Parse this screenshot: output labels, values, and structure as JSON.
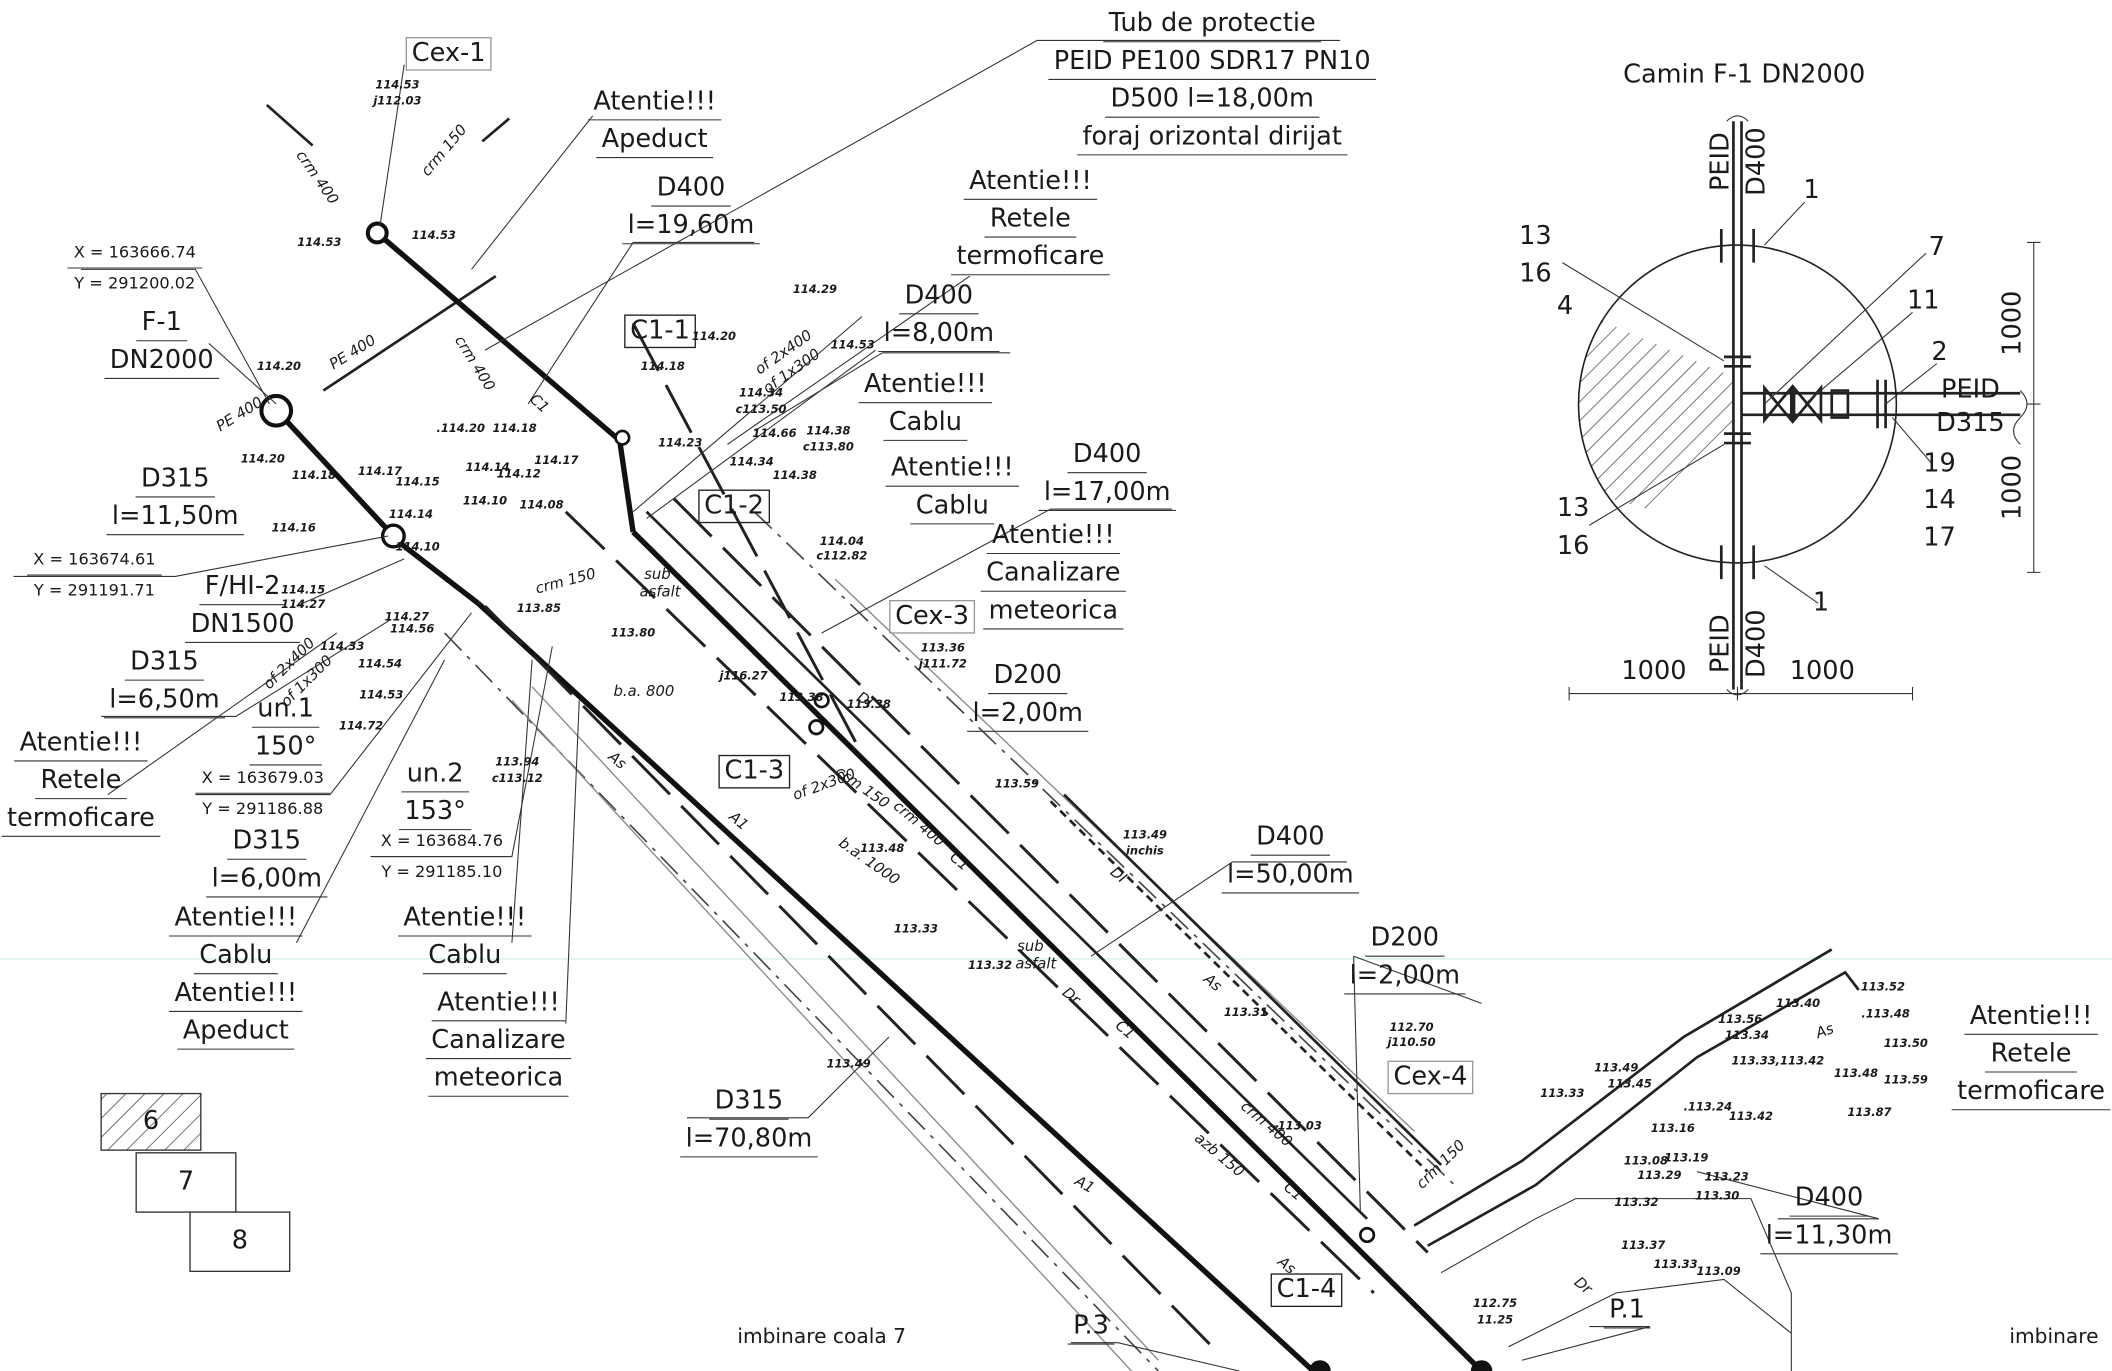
{
  "drawing": {
    "callouts": [
      [
        "Tub de protectie",
        "PEID PE100 SDR17 PN10",
        "D500 l=18,00m",
        "foraj orizontal dirijat"
      ],
      [
        "Atentie!!!",
        "Apeduct"
      ],
      [
        "D400",
        "l=19,60m"
      ],
      [
        "Atentie!!!",
        "Retele",
        "termoficare"
      ],
      [
        "F-1",
        "DN2000"
      ],
      [
        "D400",
        "l=8,00m"
      ],
      [
        "Atentie!!!",
        "Cablu"
      ],
      [
        "D400",
        "l=17,00m"
      ],
      [
        "Atentie!!!",
        "Cablu"
      ],
      [
        "Atentie!!!",
        "Canalizare",
        "meteorica"
      ],
      [
        "D315",
        "l=11,50m"
      ],
      [
        "F/HI-2",
        "DN1500"
      ],
      [
        "D200",
        "l=2,00m"
      ],
      [
        "D315",
        "l=6,50m"
      ],
      [
        "un.1",
        "150°"
      ],
      [
        "Atentie!!!",
        "Retele",
        "termoficare"
      ],
      [
        "D315",
        "l=6,00m"
      ],
      [
        "un.2",
        "153°"
      ],
      [
        "Atentie!!!",
        "Cablu",
        "Atentie!!!",
        "Apeduct"
      ],
      [
        "Atentie!!!",
        "Cablu"
      ],
      [
        "Atentie!!!",
        "Canalizare",
        "meteorica"
      ],
      [
        "D400",
        "l=50,00m"
      ],
      [
        "D200",
        "l=2,00m"
      ],
      [
        "D315",
        "l=70,80m"
      ],
      [
        "Atentie!!!",
        "Retele",
        "termoficare"
      ],
      [
        "D400",
        "l=11,30m"
      ],
      [
        "P.1"
      ],
      [
        "P.3"
      ]
    ],
    "coordinates": [
      [
        "X = 163666.74",
        "Y = 291200.02"
      ],
      [
        "X = 163674.61",
        "Y = 291191.71"
      ],
      [
        "X = 163679.03",
        "Y = 291186.88"
      ],
      [
        "X = 163684.76",
        "Y = 291185.10"
      ]
    ],
    "boxed_labels": [
      "Cex-1",
      "C1-1",
      "C1-2",
      "Cex-3",
      "C1-3",
      "Cex-4",
      "C1-4"
    ],
    "elevations": [
      "114.53",
      "j112.03",
      "114.53",
      "114.53",
      "114.20",
      "114.20",
      "114.18",
      "114.16",
      "114.17",
      "114.15",
      ".114.20",
      "114.18",
      "114.14",
      "114.12",
      "114.17",
      "114.10",
      "114.08",
      "114.14",
      "114.10",
      "114.15",
      "114.27",
      "114.27",
      "114.56",
      "114.33",
      "114.54",
      "114.53",
      "114.72",
      "113.85",
      "113.94",
      "c113.12",
      "114.29",
      "114.20",
      "114.18",
      "114.53",
      "114.34",
      "c113.50",
      "114.66",
      "114.38",
      "c113.80",
      "114.23",
      "114.34",
      "114.38",
      "114.04",
      "c112.82",
      "113.80",
      "113.36",
      "j111.72",
      "j116.27",
      "113.38",
      "113.38",
      "113.59",
      "113.49",
      "inchis",
      "113.48",
      "113.33",
      "113.32",
      "113.49",
      "113.31",
      "113.03",
      "112.70",
      "j110.50",
      "113.52",
      ".113.48",
      "113.50",
      "113.59",
      "113.40",
      "113.56",
      "113.34",
      "113.33,113.42",
      "113.48",
      "113.87",
      "113.49",
      "113.45",
      "113.33",
      "113.16",
      ".113.24",
      "113.42",
      "113.08",
      "113.19",
      "113.29",
      "113.23",
      "113.30",
      "113.32",
      "113.37",
      "113.33",
      "113.09",
      "112.75",
      "11.25"
    ],
    "pipe_labels": [
      "C1",
      "crm 400",
      "crm 150",
      "crm 400",
      "PE 400",
      "PE 400",
      "crm 150",
      "b.a. 800",
      "of 2x300",
      "b.a. 1000",
      "crm 150",
      "crm 400",
      "C1",
      "As",
      "A1",
      "A1",
      "C1",
      "As",
      "azb 150",
      "C1",
      "crm 400",
      "As",
      "Dr",
      "As",
      "of 2x400",
      "of 1x300",
      "of 2x400",
      "of 1x300",
      "DI",
      "sub",
      "asfalt",
      "sub",
      "asfalt",
      "DI",
      "Dr",
      "crm 150"
    ],
    "sheet_notes": [
      "imbinare coala 7",
      "imbinare"
    ],
    "legend": [
      "6",
      "7",
      "8"
    ],
    "inset": {
      "title": "Camin F-1 DN2000",
      "labels": [
        "PEID",
        "D400",
        "1",
        "13",
        "16",
        "4",
        "7",
        "11",
        "2",
        "PEID",
        "D315",
        "19",
        "14",
        "17",
        "13",
        "16",
        "1",
        "PEID",
        "D400",
        "1000",
        "1000",
        "1000",
        "1000"
      ]
    }
  }
}
